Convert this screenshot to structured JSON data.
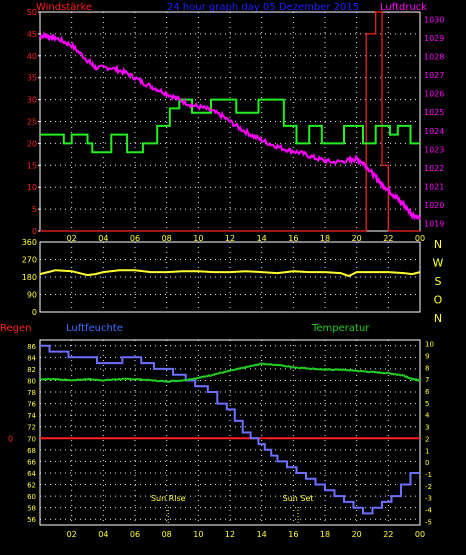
{
  "header": {
    "left_label": "Windstärke",
    "title": "24 hour graph day  05 Dezember 2015",
    "right_label": "Luftdruck"
  },
  "colors": {
    "background": "#000000",
    "plot_bg": "#000000",
    "frame": "#ffffff",
    "grid": "#ffffff",
    "wind": "#ff2020",
    "wind_axis": "#ff2020",
    "pressure": "#ff00ff",
    "pressure_axis": "#ff00ff",
    "wind_avg": "#22ee22",
    "direction": "#ffff33",
    "humidity": "#6e6eff",
    "temperature": "#22cc22",
    "rain": "#ff2020",
    "yellow_axis": "#ffff33",
    "blue_label": "#3c6cff",
    "title": "#2020ff"
  },
  "x_ticks": [
    "02",
    "04",
    "06",
    "08",
    "10",
    "12",
    "14",
    "16",
    "18",
    "20",
    "22",
    "00"
  ],
  "chart_data": [
    {
      "type": "line",
      "name": "wind-pressure",
      "left_axis_label": "Windstärke",
      "right_axis_label": "Luftdruck",
      "x_range_hours": [
        0,
        24
      ],
      "left_ylim": [
        0,
        50
      ],
      "left_ticks": [
        0,
        5,
        10,
        15,
        20,
        25,
        30,
        35,
        40,
        45,
        50
      ],
      "right_ylim": [
        1018.6,
        1030.4
      ],
      "right_ticks": [
        1019,
        1020,
        1021,
        1022,
        1023,
        1024,
        1025,
        1026,
        1027,
        1028,
        1029,
        1030
      ],
      "series": [
        {
          "name": "Windstärke",
          "axis": "left",
          "step": true,
          "x": [
            0,
            20.6,
            20.6,
            21.2,
            21.2,
            21.6,
            21.6,
            22.0,
            22.0,
            24
          ],
          "y": [
            0,
            0,
            45,
            45,
            50,
            50,
            15,
            15,
            0,
            0
          ]
        },
        {
          "name": "Wind avg",
          "axis": "left",
          "step": true,
          "x": [
            0,
            1.5,
            1.5,
            2.0,
            2.0,
            3.0,
            3.0,
            3.3,
            3.3,
            4.5,
            4.5,
            5.5,
            5.5,
            6.5,
            6.5,
            7.4,
            7.4,
            8.2,
            8.2,
            8.8,
            8.8,
            9.6,
            9.6,
            10.8,
            10.8,
            12.4,
            12.4,
            13.8,
            13.8,
            15.4,
            15.4,
            16.2,
            16.2,
            17.0,
            17.0,
            17.8,
            17.8,
            19.2,
            19.2,
            20.4,
            20.4,
            21.2,
            21.2,
            22.1,
            22.1,
            22.6,
            22.6,
            23.4,
            23.4,
            24
          ],
          "y": [
            22,
            22,
            20,
            20,
            22,
            22,
            20,
            20,
            18,
            18,
            22,
            22,
            18,
            18,
            20,
            20,
            24,
            24,
            28,
            28,
            30,
            30,
            27,
            27,
            30,
            30,
            27,
            27,
            30,
            30,
            24,
            24,
            20,
            20,
            24,
            24,
            20,
            20,
            24,
            24,
            20,
            20,
            24,
            24,
            22,
            22,
            24,
            24,
            20,
            20
          ]
        },
        {
          "name": "Luftdruck",
          "axis": "right",
          "step": false,
          "x": [
            0,
            0.5,
            1.0,
            2.0,
            3.0,
            3.5,
            4.5,
            5.5,
            6.5,
            7.5,
            8.5,
            9.5,
            10.5,
            11.5,
            12.5,
            13.5,
            14.5,
            15.5,
            16.5,
            17.5,
            18.5,
            19.5,
            20.0,
            20.5,
            21.0,
            21.5,
            22.0,
            22.5,
            23.0,
            23.5,
            24
          ],
          "y": [
            1029.1,
            1029.1,
            1029.0,
            1028.6,
            1027.8,
            1027.4,
            1027.4,
            1027.1,
            1026.6,
            1026.2,
            1025.8,
            1025.4,
            1025.2,
            1024.8,
            1024.2,
            1023.7,
            1023.3,
            1023.0,
            1022.8,
            1022.5,
            1022.3,
            1022.4,
            1022.5,
            1022.2,
            1021.7,
            1021.2,
            1020.8,
            1020.4,
            1020.0,
            1019.5,
            1019.3
          ]
        }
      ]
    },
    {
      "type": "line",
      "name": "wind-direction",
      "x_range_hours": [
        0,
        24
      ],
      "ylim": [
        0,
        360
      ],
      "left_ticks": [
        0,
        90,
        180,
        270,
        360
      ],
      "right_labels": [
        "N",
        "W",
        "S",
        "O",
        "N"
      ],
      "series": [
        {
          "name": "Windrichtung",
          "step": false,
          "x": [
            0,
            0.5,
            1,
            2,
            3,
            3.5,
            4,
            5,
            6,
            7,
            8,
            9,
            10,
            11,
            12,
            13,
            14,
            15,
            16,
            17,
            18,
            19,
            19.5,
            20,
            21,
            22,
            23,
            23.5,
            24
          ],
          "y": [
            195,
            205,
            215,
            210,
            190,
            195,
            205,
            215,
            215,
            205,
            205,
            210,
            210,
            205,
            205,
            210,
            205,
            200,
            210,
            205,
            205,
            200,
            185,
            205,
            205,
            205,
            200,
            195,
            205
          ]
        }
      ]
    },
    {
      "type": "line",
      "name": "humidity-temperature",
      "left_axis_label": "Regen",
      "left_series_label": "Luftfeuchte",
      "right_axis_label": "Temperatur",
      "x_range_hours": [
        0,
        24
      ],
      "left_ylim": [
        55,
        87
      ],
      "left_ticks": [
        56,
        58,
        60,
        62,
        64,
        66,
        68,
        70,
        72,
        74,
        76,
        78,
        80,
        82,
        84,
        86
      ],
      "right_ylim": [
        -5.3,
        10.3
      ],
      "right_ticks": [
        -5,
        -4,
        -3,
        -2,
        -1,
        0,
        1,
        2,
        3,
        4,
        5,
        6,
        7,
        8,
        9,
        10
      ],
      "rain_zero_label": "0",
      "series": [
        {
          "name": "Luftfeuchte",
          "axis": "left",
          "step": true,
          "x": [
            0,
            0.6,
            0.6,
            1.8,
            1.8,
            3.6,
            3.6,
            5.2,
            5.2,
            6.4,
            6.4,
            7.2,
            7.2,
            8.4,
            8.4,
            9.2,
            9.2,
            9.8,
            9.8,
            10.6,
            10.6,
            11.2,
            11.2,
            11.8,
            11.8,
            12.3,
            12.3,
            12.8,
            12.8,
            13.3,
            13.3,
            13.8,
            13.8,
            14.2,
            14.2,
            14.6,
            14.6,
            15.0,
            15.0,
            15.6,
            15.6,
            16.2,
            16.2,
            16.8,
            16.8,
            17.4,
            17.4,
            18.0,
            18.0,
            18.6,
            18.6,
            19.2,
            19.2,
            19.8,
            19.8,
            20.4,
            20.4,
            21.0,
            21.0,
            21.6,
            21.6,
            22.2,
            22.2,
            22.8,
            22.8,
            23.4,
            23.4,
            24
          ],
          "y": [
            86,
            86,
            85,
            85,
            84,
            84,
            83,
            83,
            84,
            84,
            83,
            83,
            82,
            82,
            81,
            81,
            80,
            80,
            79,
            79,
            78,
            78,
            76,
            76,
            75,
            75,
            73,
            73,
            71,
            71,
            70,
            70,
            69,
            69,
            68,
            68,
            67,
            67,
            66,
            66,
            65,
            65,
            64,
            64,
            63,
            63,
            62,
            62,
            61,
            61,
            60,
            60,
            59,
            59,
            58,
            58,
            57,
            57,
            58,
            58,
            59,
            59,
            60,
            60,
            62,
            62,
            64,
            64
          ]
        },
        {
          "name": "Temperatur",
          "axis": "right",
          "step": false,
          "x": [
            0,
            1,
            2,
            3,
            4,
            5,
            6,
            7,
            8,
            9,
            10,
            11,
            12,
            13,
            14,
            15,
            16,
            17,
            18,
            19,
            20,
            21,
            22,
            23,
            23.5,
            24
          ],
          "y": [
            7.0,
            7.0,
            6.9,
            7.0,
            6.9,
            7.0,
            7.0,
            6.9,
            6.8,
            6.9,
            7.1,
            7.4,
            7.7,
            8.0,
            8.3,
            8.2,
            8.0,
            7.9,
            7.8,
            7.8,
            7.7,
            7.6,
            7.5,
            7.3,
            7.0,
            6.9
          ]
        },
        {
          "name": "Regen",
          "axis": "left",
          "step": false,
          "x": [
            0,
            24
          ],
          "y": [
            70,
            70
          ]
        }
      ],
      "annotations": [
        {
          "label": "Sun Rise",
          "x_hour": 8.1
        },
        {
          "label": "Sun Set",
          "x_hour": 16.3
        }
      ]
    }
  ]
}
